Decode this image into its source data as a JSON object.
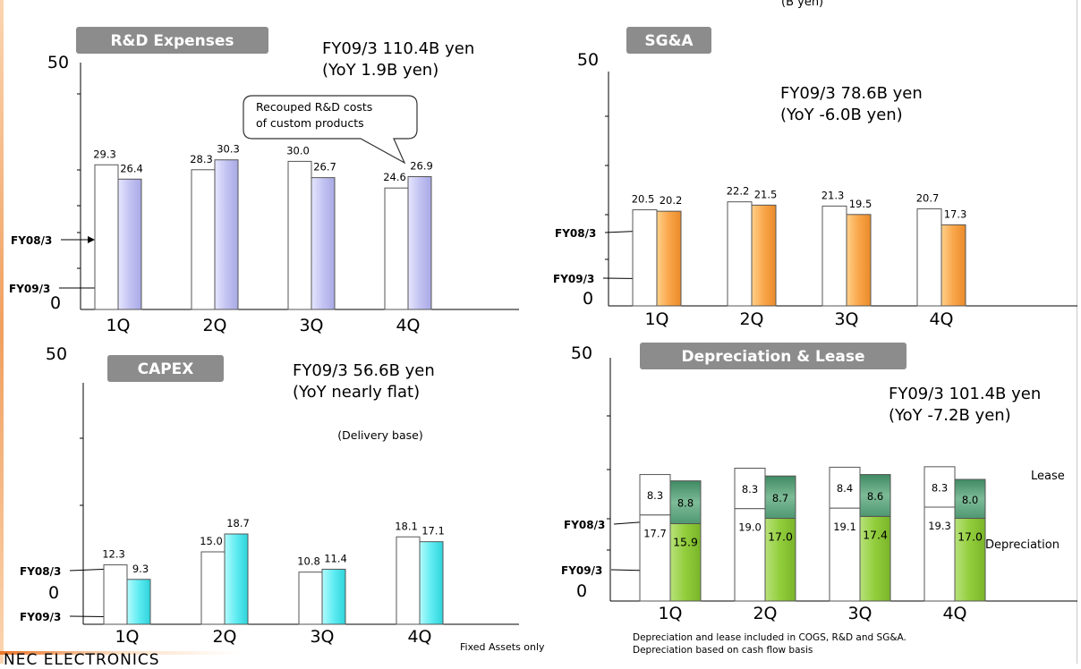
{
  "unit_label": "(B yen)",
  "company": "NEC ELECTRONICS",
  "series_labels": [
    "FY08/3",
    "FY09/3"
  ],
  "chart_data": [
    {
      "type": "bar",
      "title": "R&D Expenses",
      "ytick_top": "50",
      "ytick_bottom": "0",
      "ylim": [
        0,
        50
      ],
      "categories": [
        "1Q",
        "2Q",
        "3Q",
        "4Q"
      ],
      "series": [
        {
          "name": "FY08/3",
          "values": [
            29.3,
            28.3,
            30.0,
            24.6
          ]
        },
        {
          "name": "FY09/3",
          "values": [
            26.4,
            30.3,
            26.7,
            26.9
          ]
        }
      ],
      "annotation_line1": "FY09/3 110.4B yen",
      "annotation_line2": "(YoY 1.9B yen)",
      "callout_line1": "Recouped R&D costs",
      "callout_line2": "of custom products",
      "colors": {
        "fy08": "#ffffff",
        "fy09": "#c9c9f5"
      }
    },
    {
      "type": "bar",
      "title": "SG&A",
      "ytick_top": "50",
      "ytick_bottom": "0",
      "ylim": [
        0,
        50
      ],
      "categories": [
        "1Q",
        "2Q",
        "3Q",
        "4Q"
      ],
      "series": [
        {
          "name": "FY08/3",
          "values": [
            20.5,
            22.2,
            21.3,
            20.7
          ]
        },
        {
          "name": "FY09/3",
          "values": [
            20.2,
            21.5,
            19.5,
            17.3
          ]
        }
      ],
      "annotation_line1": "FY09/3 78.6B yen",
      "annotation_line2": "(YoY -6.0B yen)",
      "colors": {
        "fy08": "#ffffff",
        "fy09": "#f7a44a"
      }
    },
    {
      "type": "bar",
      "title": "CAPEX",
      "ytick_top": "50",
      "ytick_bottom": "0",
      "ylim": [
        0,
        50
      ],
      "categories": [
        "1Q",
        "2Q",
        "3Q",
        "4Q"
      ],
      "series": [
        {
          "name": "FY08/3",
          "values": [
            12.3,
            15.0,
            10.8,
            18.1
          ]
        },
        {
          "name": "FY09/3",
          "values": [
            9.3,
            18.7,
            11.4,
            17.1
          ]
        }
      ],
      "annotation_line1": "FY09/3 56.6B yen",
      "annotation_line2": "(YoY nearly flat)",
      "note": "(Delivery base)",
      "footnote": "Fixed Assets only",
      "colors": {
        "fy08": "#ffffff",
        "fy09": "#66f0f5"
      }
    },
    {
      "type": "bar",
      "stacked": true,
      "title": "Depreciation & Lease",
      "ytick_top": "50",
      "ytick_bottom": "0",
      "ylim": [
        0,
        50
      ],
      "categories": [
        "1Q",
        "2Q",
        "3Q",
        "4Q"
      ],
      "series": [
        {
          "name": "FY08/3",
          "depreciation": [
            17.7,
            19.0,
            19.1,
            19.3
          ],
          "lease": [
            8.3,
            8.3,
            8.4,
            8.3
          ]
        },
        {
          "name": "FY09/3",
          "depreciation": [
            15.9,
            17.0,
            17.4,
            17.0
          ],
          "lease": [
            8.8,
            8.7,
            8.6,
            8.0
          ]
        }
      ],
      "annotation_line1": "FY09/3 101.4B yen",
      "annotation_line2": "(YoY -7.2B yen)",
      "segment_label_top": "Lease",
      "segment_label_bottom": "Depreciation",
      "footnote1": "Depreciation and lease included in COGS, R&D and SG&A.",
      "footnote2": "Depreciation based on cash flow basis",
      "colors": {
        "fy08": "#ffffff",
        "depreciation": "#8fcc3a",
        "lease": "#5fa078"
      }
    }
  ]
}
